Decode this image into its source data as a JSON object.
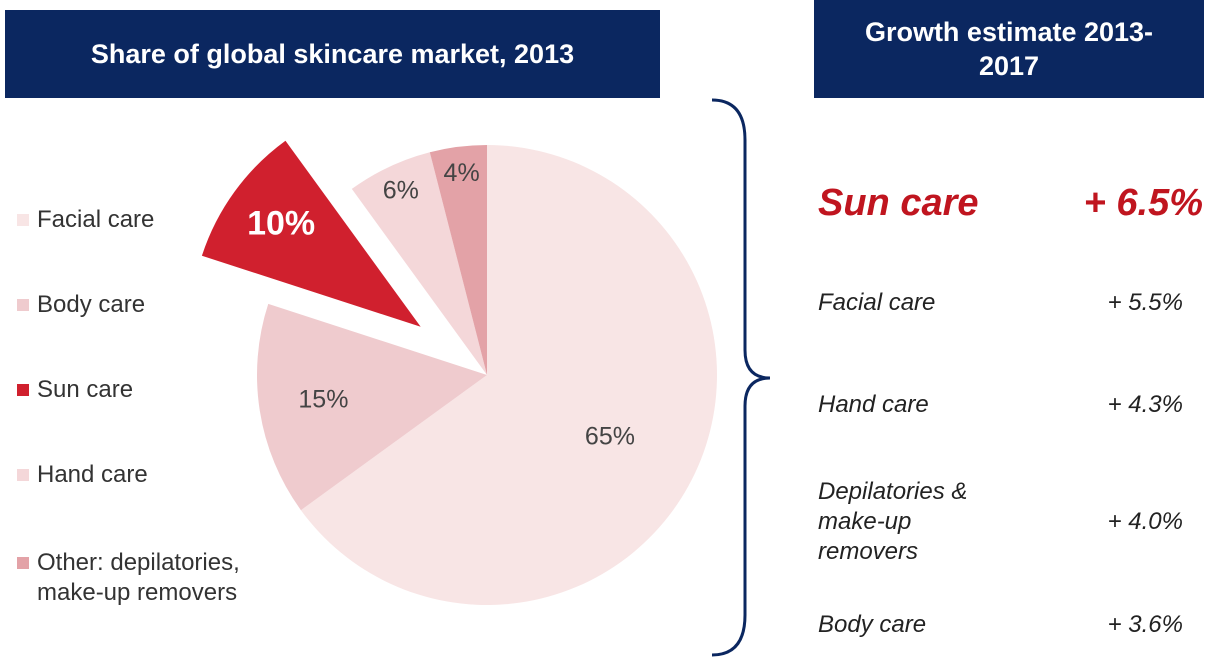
{
  "chart_data": {
    "type": "pie",
    "title": "Share of global skincare market, 2013",
    "categories": [
      "Facial care",
      "Body care",
      "Sun care",
      "Hand care",
      "Other: depilatories, make-up removers"
    ],
    "values": [
      65,
      15,
      10,
      6,
      4
    ],
    "value_labels": [
      "65%",
      "15%",
      "10%",
      "6%",
      "4%"
    ],
    "colors": [
      "#f8e5e5",
      "#efcbce",
      "#d0202e",
      "#f4d7d9",
      "#e3a2a7"
    ],
    "exploded": "Sun care"
  },
  "growth": {
    "title": "Growth estimate 2013-2017",
    "rows": [
      {
        "label": "Sun care",
        "value": "+ 6.5%"
      },
      {
        "label": "Facial care",
        "value": "+ 5.5%"
      },
      {
        "label": "Hand care",
        "value": "+ 4.3%"
      },
      {
        "label": "Depilatories & make-up removers",
        "value": "+ 4.0%"
      },
      {
        "label": "Body care",
        "value": "+ 3.6%"
      }
    ]
  }
}
